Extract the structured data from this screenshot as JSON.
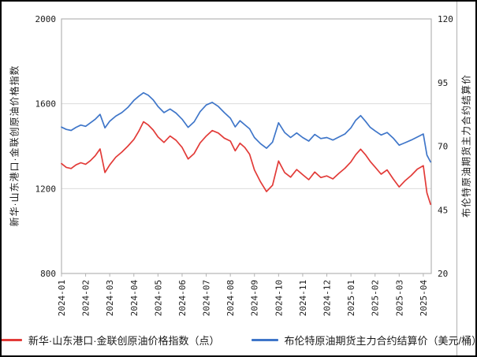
{
  "chart_data": {
    "type": "line",
    "title": "",
    "x_tick_labels": [
      "2024-01",
      "2024-02",
      "2024-03",
      "2024-04",
      "2024-05",
      "2024-06",
      "2024-07",
      "2024-08",
      "2024-09",
      "2024-10",
      "2024-11",
      "2024-12",
      "2025-01",
      "2025-02",
      "2025-03",
      "2025-04"
    ],
    "x_axis": {
      "span_months": 15.33
    },
    "left_axis": {
      "label": "新华·山东港口·金联创原油价格指数",
      "min": 800,
      "max": 2000,
      "ticks": [
        2000,
        1600,
        1200,
        800
      ],
      "gridlines": [
        1600,
        1200
      ]
    },
    "right_axis": {
      "label": "布伦特原油期货主力合约结算价",
      "min": 20,
      "max": 120,
      "ticks": [
        120,
        95,
        70,
        45,
        20
      ]
    },
    "x": [
      0,
      0.2,
      0.4,
      0.6,
      0.8,
      1.0,
      1.2,
      1.4,
      1.6,
      1.8,
      2.0,
      2.25,
      2.5,
      2.75,
      3.0,
      3.2,
      3.4,
      3.6,
      3.8,
      4.0,
      4.25,
      4.5,
      4.75,
      5.0,
      5.25,
      5.5,
      5.75,
      6.0,
      6.25,
      6.5,
      6.75,
      7.0,
      7.2,
      7.4,
      7.6,
      7.8,
      8.0,
      8.25,
      8.5,
      8.75,
      9.0,
      9.25,
      9.5,
      9.75,
      10.0,
      10.25,
      10.5,
      10.75,
      11.0,
      11.25,
      11.5,
      11.75,
      12.0,
      12.2,
      12.4,
      12.6,
      12.8,
      13.0,
      13.25,
      13.5,
      13.75,
      14.0,
      14.25,
      14.5,
      14.75,
      15.0,
      15.15,
      15.3
    ],
    "series": [
      {
        "name": "新华·山东港口·金联创原油价格指数（点）",
        "axis": "left",
        "color": "#e23b38",
        "values": [
          1318,
          1300,
          1295,
          1312,
          1322,
          1315,
          1332,
          1355,
          1387,
          1276,
          1312,
          1348,
          1372,
          1400,
          1432,
          1470,
          1515,
          1500,
          1476,
          1444,
          1418,
          1448,
          1428,
          1394,
          1340,
          1366,
          1416,
          1448,
          1474,
          1462,
          1438,
          1424,
          1378,
          1414,
          1394,
          1362,
          1288,
          1232,
          1186,
          1216,
          1330,
          1276,
          1254,
          1290,
          1266,
          1242,
          1278,
          1252,
          1260,
          1246,
          1272,
          1296,
          1326,
          1360,
          1386,
          1360,
          1328,
          1302,
          1268,
          1288,
          1246,
          1208,
          1238,
          1262,
          1292,
          1308,
          1180,
          1126
        ]
      },
      {
        "name": "布伦特原油期货主力合约结算价（美元/桶）",
        "axis": "right",
        "color": "#3f76c9",
        "values": [
          77.5,
          76.6,
          76.2,
          77.4,
          78.3,
          77.8,
          79.2,
          80.6,
          82.5,
          77.2,
          79.8,
          81.8,
          83.2,
          85.2,
          88.0,
          89.6,
          91.0,
          90.0,
          88.2,
          85.6,
          83.2,
          84.6,
          83.0,
          80.6,
          77.4,
          79.6,
          83.6,
          86.2,
          87.2,
          85.6,
          83.2,
          81.0,
          77.6,
          80.0,
          78.4,
          76.8,
          73.4,
          71.0,
          69.2,
          71.6,
          79.2,
          75.4,
          73.4,
          75.2,
          73.4,
          72.0,
          74.6,
          73.0,
          73.4,
          72.4,
          73.6,
          74.8,
          77.2,
          80.2,
          82.0,
          79.8,
          77.4,
          76.0,
          74.4,
          75.4,
          73.2,
          70.4,
          71.4,
          72.4,
          73.6,
          74.8,
          66.5,
          63.8
        ]
      }
    ],
    "legend_position": "bottom",
    "grid": {
      "on": true
    }
  },
  "colors": {
    "plot_frame": "#b3b3b3",
    "gridline": "#dcdcdc",
    "divider": "#b0b0b0",
    "image_border": "#000000",
    "background": "#ffffff"
  }
}
